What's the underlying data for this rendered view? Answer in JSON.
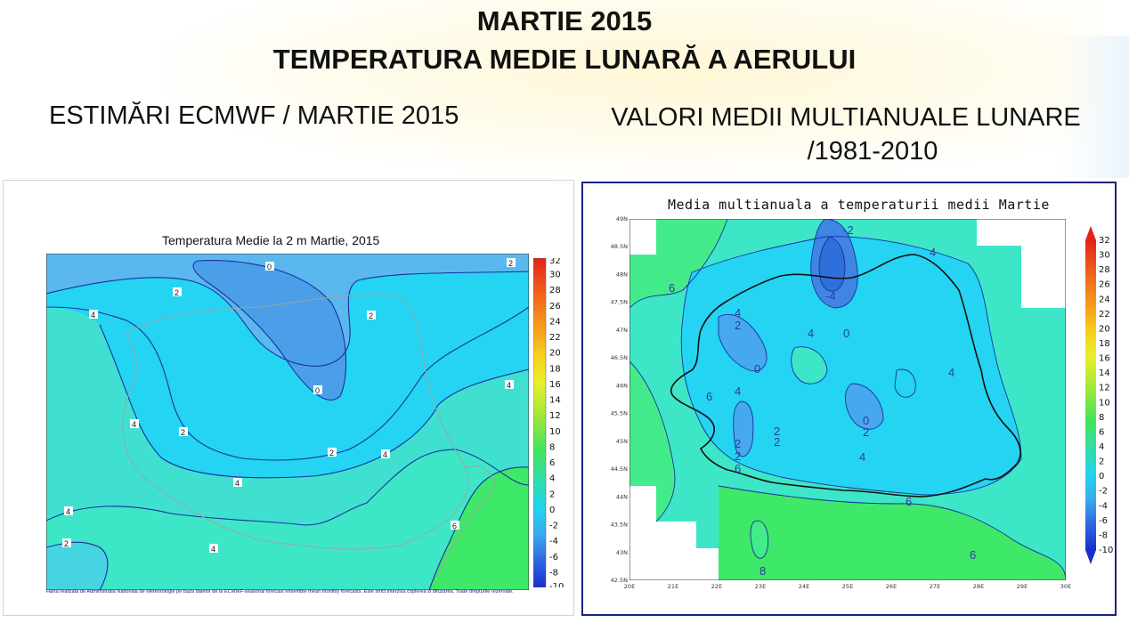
{
  "header": {
    "title_line1": "MARTIE 2015",
    "title_line2": "TEMPERATURA MEDIE LUNARĂ A AERULUI",
    "left_subtitle": "ESTIMĂRI ECMWF / MARTIE 2015",
    "right_subtitle_line1": "VALORI MEDII MULTIANUALE LUNARE",
    "right_subtitle_line2": "/1981-2010"
  },
  "left_map": {
    "title": "Temperatura Medie la 2 m Martie, 2015",
    "colorbar_ticks": [
      "32",
      "30",
      "28",
      "26",
      "24",
      "22",
      "20",
      "18",
      "16",
      "14",
      "12",
      "10",
      "8",
      "6",
      "4",
      "2",
      "0",
      "-2",
      "-4",
      "-6",
      "-8",
      "-10"
    ],
    "contour_labels": [
      "0",
      "0",
      "2",
      "2",
      "2",
      "2",
      "2",
      "2",
      "4",
      "4",
      "4",
      "4",
      "4",
      "4",
      "4",
      "6"
    ],
    "footnote": "Harta realizata de Administratia Nationala de Meteorologie pe baza datelor de la ECMWF-seasonal forecast ensemble mean monthly forecasts. Este strict interzisa copierea si difuzarea. Toate drepturile rezervate."
  },
  "right_map": {
    "title": "Media multianuala a temperaturii medii Martie",
    "colorbar_ticks": [
      "32",
      "30",
      "28",
      "26",
      "24",
      "22",
      "20",
      "18",
      "16",
      "14",
      "12",
      "10",
      "8",
      "6",
      "4",
      "2",
      "0",
      "-2",
      "-4",
      "-6",
      "-8",
      "-10"
    ],
    "lat_labels": [
      "49N",
      "48.5N",
      "48N",
      "47.5N",
      "47N",
      "46.5N",
      "46N",
      "45.5N",
      "45N",
      "44.5N",
      "44N",
      "43.5N",
      "43N",
      "42.5N"
    ],
    "lon_labels": [
      "20E",
      "21E",
      "22E",
      "23E",
      "24E",
      "25E",
      "26E",
      "27E",
      "28E",
      "29E",
      "30E"
    ],
    "contour_labels": [
      "-2",
      "-4",
      "0",
      "4",
      "6",
      "4",
      "2",
      "4",
      "0",
      "4",
      "6",
      "4",
      "2",
      "2",
      "2",
      "6",
      "0",
      "2",
      "2",
      "4",
      "6",
      "6",
      "8"
    ]
  },
  "colors": {
    "blue_dark": "#2f6fd9",
    "blue_mid": "#5ab8ee",
    "cyan": "#24d4f2",
    "teal": "#3ee6c8",
    "green_light": "#44eb8a",
    "green": "#3ee868",
    "contour_line": "#1b2fa0",
    "border": "#111111"
  }
}
